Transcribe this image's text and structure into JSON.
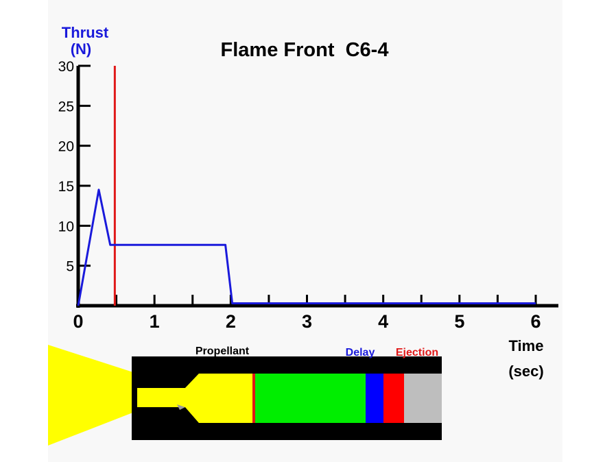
{
  "title": "Flame Front  C6-4",
  "y_label_line1": "Thrust",
  "y_label_line2": "(N)",
  "x_label_line1": "Time",
  "x_label_line2": "(sec)",
  "colors": {
    "thrust": "#1a1adb",
    "flame_front": "#e01818",
    "propellant_label": "#000000",
    "delay_label": "#1a1adb",
    "ejection_label": "#e01818",
    "flame": "#ffff00",
    "propellant": "#00ee00",
    "delay": "#0000ff",
    "ejection": "#ff0000",
    "casing": "#000000",
    "cap": "#bebebe"
  },
  "chart_data": {
    "type": "line",
    "x_ticks": [
      0,
      1,
      2,
      3,
      4,
      5,
      6
    ],
    "y_ticks": [
      5,
      10,
      15,
      20,
      25,
      30
    ],
    "xlim": [
      0,
      6
    ],
    "ylim": [
      0,
      30
    ],
    "series": [
      {
        "x": [
          0,
          0.27,
          0.42,
          0.48,
          1.93,
          2.02,
          6.0
        ],
        "y": [
          0,
          14.5,
          7.6,
          7.6,
          7.6,
          0.3,
          0.3
        ]
      }
    ],
    "flame_front_marker": {
      "x": 0.48
    }
  },
  "motor": {
    "propellant_label": "Propellant",
    "delay_label": "Delay",
    "ejection_label": "Ejection"
  }
}
